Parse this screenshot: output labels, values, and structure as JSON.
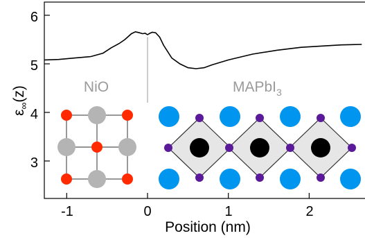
{
  "chart_data": {
    "type": "line",
    "title": "",
    "xlabel": "Position (nm)",
    "ylabel_main": "ε",
    "ylabel_subscript": "∞",
    "ylabel_suffix": "(z)",
    "xlim": [
      -1.28,
      2.65
    ],
    "ylim": [
      2.3,
      6.3
    ],
    "xticks": [
      -1,
      0,
      1,
      2
    ],
    "yticks": [
      3,
      4,
      5,
      6
    ],
    "xtick_labels": [
      "-1",
      "0",
      "1",
      "2"
    ],
    "ytick_labels": [
      "3",
      "4",
      "5",
      "6"
    ],
    "grid": false,
    "interface_x": 0,
    "series": [
      {
        "color": "#000000",
        "x": [
          -1.28,
          -1.1,
          -0.9,
          -0.7,
          -0.55,
          -0.45,
          -0.35,
          -0.28,
          -0.2,
          -0.15,
          -0.1,
          -0.06,
          -0.03,
          0.0,
          0.03,
          0.06,
          0.1,
          0.15,
          0.2,
          0.3,
          0.4,
          0.5,
          0.6,
          0.7,
          0.8,
          1.0,
          1.3,
          1.6,
          1.9,
          2.2,
          2.4,
          2.65
        ],
        "y": [
          5.08,
          5.09,
          5.12,
          5.15,
          5.22,
          5.33,
          5.42,
          5.5,
          5.62,
          5.66,
          5.64,
          5.62,
          5.63,
          5.6,
          5.63,
          5.65,
          5.64,
          5.55,
          5.38,
          5.12,
          5.0,
          4.92,
          4.9,
          4.92,
          4.98,
          5.08,
          5.2,
          5.28,
          5.34,
          5.37,
          5.39,
          5.4
        ]
      }
    ]
  },
  "regions": {
    "left_label": "NiO",
    "right_label_main": "MAPbI",
    "right_label_sub": "3"
  },
  "colors": {
    "oxygen": "#ff2a00",
    "nickel": "#b4b4b4",
    "halide": "#5a1a9a",
    "lead": "#000000",
    "ma_cation": "#0095ee",
    "octahedron_fill": "#e6e6e6"
  }
}
